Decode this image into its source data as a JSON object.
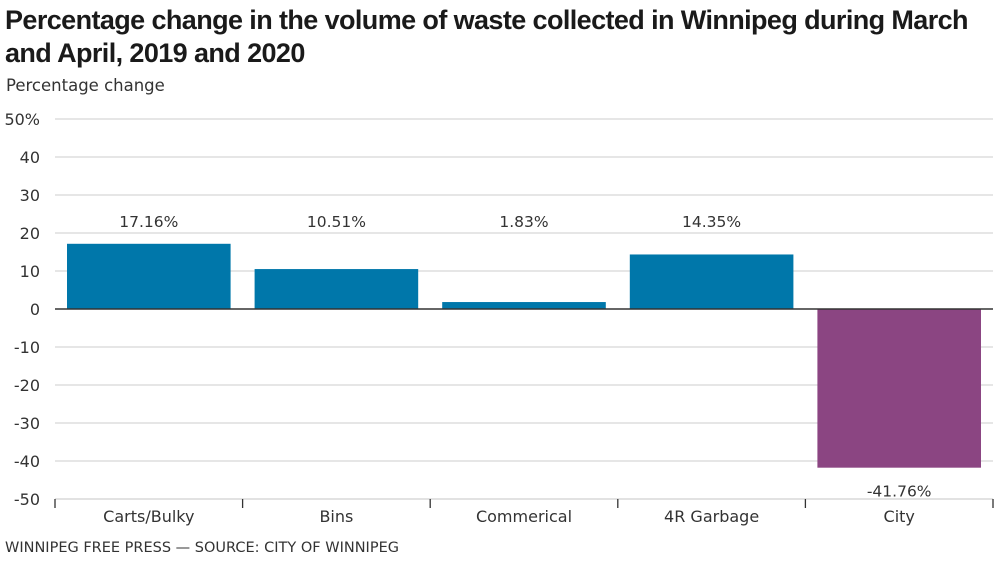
{
  "chart_data": {
    "type": "bar",
    "title": "Percentage change in the volume of waste collected in Winnipeg during March and April, 2019 and 2020",
    "ylabel": "Percentage change",
    "xlabel": "",
    "categories": [
      "Carts/Bulky",
      "Bins",
      "Commerical",
      "4R Garbage",
      "City"
    ],
    "values": [
      17.16,
      10.51,
      1.83,
      14.35,
      -41.76
    ],
    "data_labels": [
      "17.16%",
      "10.51%",
      "1.83%",
      "14.35%",
      "-41.76%"
    ],
    "colors": [
      "#0077aa",
      "#0077aa",
      "#0077aa",
      "#0077aa",
      "#8b4582"
    ],
    "ylim": [
      -50,
      50
    ],
    "yticks": [
      50,
      40,
      30,
      20,
      10,
      0,
      -10,
      -20,
      -30,
      -40,
      -50
    ],
    "ytick_labels": [
      "50%",
      "40",
      "30",
      "20",
      "10",
      "0",
      "-10",
      "-20",
      "-30",
      "-40",
      "-50"
    ],
    "grid": true,
    "legend": "none",
    "source": "WINNIPEG FREE PRESS — SOURCE: CITY OF WINNIPEG"
  }
}
